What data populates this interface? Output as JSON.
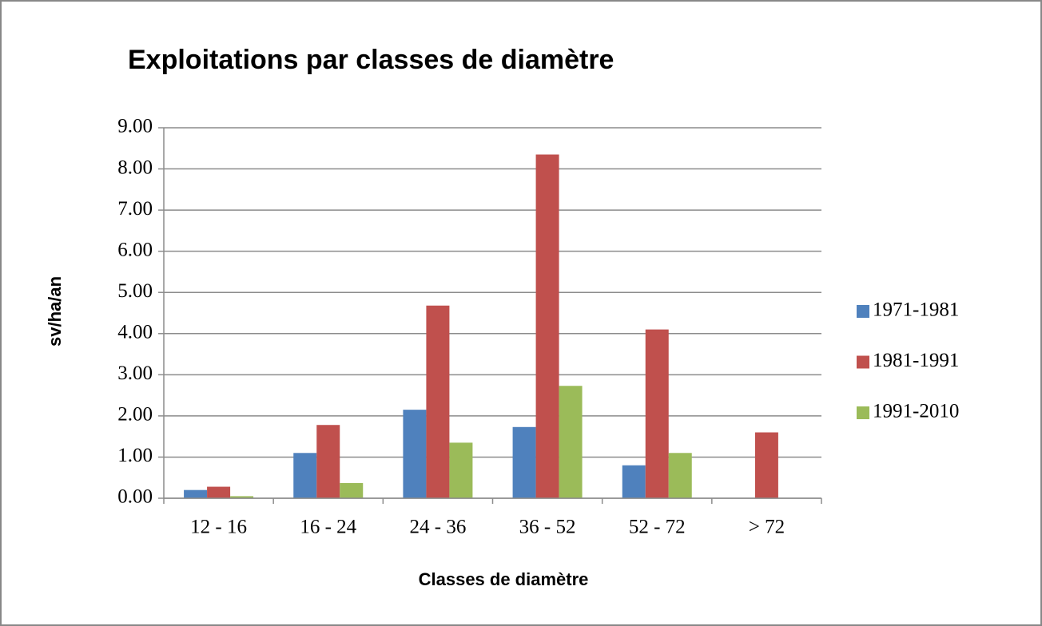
{
  "chart_data": {
    "type": "bar",
    "title": "Exploitations par classes de diamètre",
    "x_label": "Classes de diamètre",
    "y_label": "sv/ha/an",
    "categories": [
      "12 - 16",
      "16 - 24",
      "24 - 36",
      "36 - 52",
      "52 - 72",
      "> 72"
    ],
    "series": [
      {
        "name": "1971-1981",
        "color": "#4f81bd",
        "values": [
          0.2,
          1.1,
          2.15,
          1.73,
          0.8,
          0
        ]
      },
      {
        "name": "1981-1991",
        "color": "#c0504d",
        "values": [
          0.28,
          1.78,
          4.68,
          8.35,
          4.1,
          1.6
        ]
      },
      {
        "name": "1991-2010",
        "color": "#9bbb59",
        "values": [
          0.05,
          0.37,
          1.35,
          2.73,
          1.1,
          0
        ]
      }
    ],
    "ylim": [
      0,
      9
    ],
    "yticks": [
      {
        "value": 0,
        "label": "0.00"
      },
      {
        "value": 1,
        "label": "1.00"
      },
      {
        "value": 2,
        "label": "2.00"
      },
      {
        "value": 3,
        "label": "3.00"
      },
      {
        "value": 4,
        "label": "4.00"
      },
      {
        "value": 5,
        "label": "5.00"
      },
      {
        "value": 6,
        "label": "6.00"
      },
      {
        "value": 7,
        "label": "7.00"
      },
      {
        "value": 8,
        "label": "8.00"
      },
      {
        "value": 9,
        "label": "9.00"
      }
    ],
    "grid": true,
    "legend": "right"
  }
}
